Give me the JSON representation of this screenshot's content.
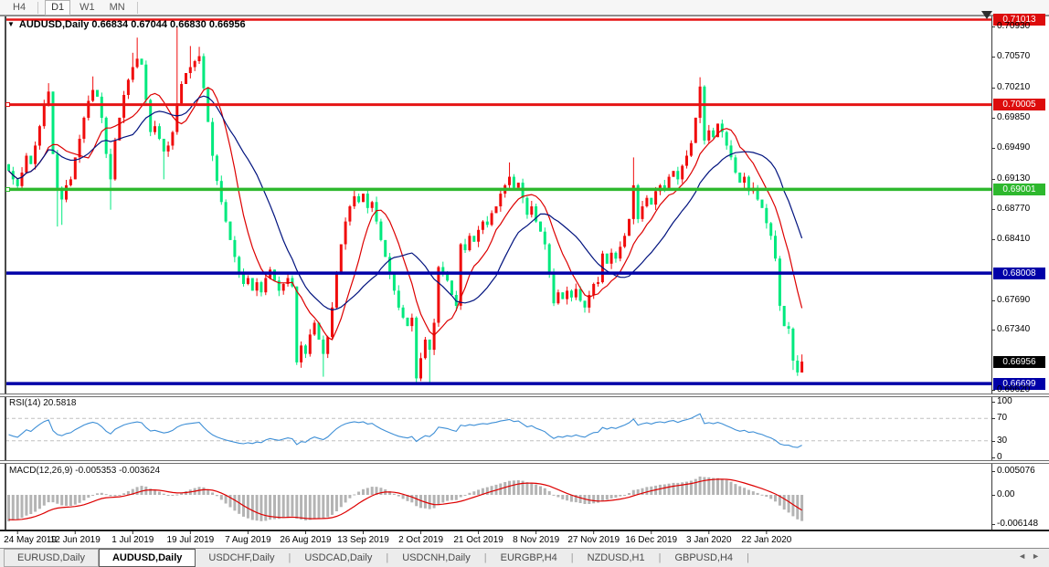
{
  "toolbar": {
    "timeframes": [
      {
        "label": "H4",
        "active": false
      },
      {
        "label": "D1",
        "active": true
      },
      {
        "label": "W1",
        "active": false
      },
      {
        "label": "MN",
        "active": false
      }
    ]
  },
  "header": {
    "symbol_title": "AUDUSD,Daily",
    "ohlc_text": "0.66834 0.67044 0.66830 0.66956",
    "dropdown_icon": "▼"
  },
  "indicators": {
    "rsi": {
      "name": "RSI(14)",
      "value": "20.5818",
      "line_color": "#3e8fd6",
      "level_line_color": "#c0c0c0",
      "levels": [
        70,
        30
      ],
      "axis_labels": [
        {
          "text": "100",
          "v": 100
        },
        {
          "text": "70",
          "v": 70
        },
        {
          "text": "30",
          "v": 30
        },
        {
          "text": "0",
          "v": 0
        }
      ]
    },
    "macd": {
      "name": "MACD(12,26,9)",
      "macd_value": "-0.005353",
      "signal_value": "-0.003624",
      "histogram_color": "#b4b4b4",
      "signal_color": "#dd0000",
      "axis_labels": [
        {
          "text": "0.005076",
          "v": 0.005076
        },
        {
          "text": "0.00",
          "v": 0
        },
        {
          "text": "-0.006148",
          "v": -0.006148
        }
      ]
    }
  },
  "chart_data": {
    "type": "candlestick",
    "symbol": "AUDUSD",
    "timeframe": "Daily",
    "up_color": "#f00c0c",
    "down_color": "#00e97e",
    "ma_fast": {
      "period": 9,
      "color": "#dd0000"
    },
    "ma_slow": {
      "period": 19,
      "color": "#00127e"
    },
    "price_range": {
      "top": 0.7104,
      "bottom": 0.6657
    },
    "price_axis_ticks": [
      0.7093,
      0.7057,
      0.7021,
      0.6985,
      0.6949,
      0.6913,
      0.6877,
      0.6841,
      0.6769,
      0.6734,
      0.6662
    ],
    "x_axis_dates": [
      "24 May 2019",
      "12 Jun 2019",
      "1 Jul 2019",
      "19 Jul 2019",
      "7 Aug 2019",
      "26 Aug 2019",
      "13 Sep 2019",
      "2 Oct 2019",
      "21 Oct 2019",
      "8 Nov 2019",
      "27 Nov 2019",
      "16 Dec 2019",
      "3 Jan 2020",
      "22 Jan 2020"
    ],
    "date_tick_bars": [
      2,
      15,
      28,
      41,
      54,
      67,
      80,
      93,
      106,
      119,
      132,
      145,
      158,
      171
    ],
    "first_open": 0.693,
    "closes": [
      0.6922,
      0.6912,
      0.6904,
      0.692,
      0.694,
      0.693,
      0.6952,
      0.6975,
      0.7,
      0.7016,
      0.6942,
      0.6902,
      0.6888,
      0.6905,
      0.6912,
      0.6938,
      0.696,
      0.6985,
      0.7005,
      0.7018,
      0.701,
      0.6985,
      0.6942,
      0.6912,
      0.6958,
      0.6985,
      0.7012,
      0.703,
      0.7045,
      0.7055,
      0.7048,
      0.7006,
      0.6968,
      0.6975,
      0.696,
      0.6945,
      0.6952,
      0.6968,
      0.7002,
      0.7025,
      0.7038,
      0.7045,
      0.7052,
      0.7058,
      0.702,
      0.698,
      0.694,
      0.691,
      0.6885,
      0.6862,
      0.684,
      0.682,
      0.68,
      0.6788,
      0.6795,
      0.678,
      0.679,
      0.6778,
      0.6795,
      0.6805,
      0.6792,
      0.678,
      0.6788,
      0.6795,
      0.6785,
      0.6695,
      0.6715,
      0.6705,
      0.6728,
      0.6742,
      0.6722,
      0.6705,
      0.6725,
      0.676,
      0.68,
      0.6835,
      0.6862,
      0.688,
      0.6892,
      0.6885,
      0.6895,
      0.6878,
      0.6885,
      0.6862,
      0.684,
      0.682,
      0.68,
      0.678,
      0.676,
      0.6748,
      0.6738,
      0.6748,
      0.6676,
      0.67,
      0.6722,
      0.671,
      0.6742,
      0.6808,
      0.68,
      0.6792,
      0.6775,
      0.6762,
      0.6835,
      0.6828,
      0.6845,
      0.6838,
      0.6852,
      0.6862,
      0.6858,
      0.6872,
      0.688,
      0.6895,
      0.6905,
      0.6915,
      0.6902,
      0.6908,
      0.689,
      0.687,
      0.688,
      0.6862,
      0.685,
      0.6835,
      0.68,
      0.6765,
      0.6778,
      0.677,
      0.678,
      0.6772,
      0.6782,
      0.6768,
      0.676,
      0.6775,
      0.6788,
      0.679,
      0.6824,
      0.6812,
      0.6825,
      0.6818,
      0.6832,
      0.6845,
      0.6865,
      0.6905,
      0.6865,
      0.688,
      0.689,
      0.6882,
      0.6898,
      0.6905,
      0.69,
      0.6915,
      0.6922,
      0.6912,
      0.6928,
      0.694,
      0.6955,
      0.6985,
      0.7022,
      0.6958,
      0.697,
      0.6962,
      0.6978,
      0.6968,
      0.6952,
      0.6938,
      0.692,
      0.6908,
      0.6915,
      0.6898,
      0.6902,
      0.6888,
      0.6878,
      0.686,
      0.6845,
      0.6818,
      0.6762,
      0.6738,
      0.6735,
      0.6697,
      0.6683,
      0.6696
    ],
    "wick_overrides": {
      "9": {
        "h": 0.7026
      },
      "11": {
        "l": 0.6856
      },
      "12": {
        "l": 0.6858
      },
      "19": {
        "h": 0.7034
      },
      "23": {
        "l": 0.6876
      },
      "28": {
        "h": 0.7062
      },
      "29": {
        "h": 0.708
      },
      "35": {
        "l": 0.6912
      },
      "38": {
        "h": 0.7092
      },
      "41": {
        "h": 0.707
      },
      "43": {
        "h": 0.7069
      },
      "65": {
        "l": 0.6692
      },
      "71": {
        "l": 0.6678
      },
      "78": {
        "h": 0.6901
      },
      "92": {
        "l": 0.667
      },
      "95": {
        "l": 0.6671
      },
      "113": {
        "h": 0.6932
      },
      "130": {
        "l": 0.6754
      },
      "141": {
        "h": 0.6938
      },
      "156": {
        "h": 0.7033
      },
      "174": {
        "l": 0.6756
      },
      "177": {
        "l": 0.6686
      },
      "178": {
        "l": 0.6679
      },
      "179": {
        "h": 0.67044,
        "l": 0.6683
      }
    },
    "horizontal_lines": [
      {
        "price": 0.71013,
        "label": "0.71013",
        "color": "#e51414",
        "thickness": 2.5,
        "badge": "#dd0c0c",
        "handle": false
      },
      {
        "price": 0.70005,
        "label": "0.70005",
        "color": "#e51414",
        "thickness": 3,
        "badge": "#dd0c0c",
        "handle": true
      },
      {
        "price": 0.69001,
        "label": "0.69001",
        "color": "#2eb82e",
        "thickness": 3.5,
        "badge": "#2eb82e",
        "handle": true
      },
      {
        "price": 0.68008,
        "label": "0.68008",
        "color": "#0000a8",
        "thickness": 3.5,
        "badge": "#0000a8",
        "handle": false
      },
      {
        "price": 0.66699,
        "label": "0.66699",
        "color": "#0000a8",
        "thickness": 3.5,
        "badge": "#0000a8",
        "handle": false
      }
    ],
    "current_price": {
      "price": 0.66956,
      "label": "0.66956",
      "badge": "#000000"
    }
  },
  "tabs": {
    "items": [
      {
        "label": "EURUSD,Daily",
        "active": false
      },
      {
        "label": "AUDUSD,Daily",
        "active": true
      },
      {
        "label": "USDCHF,Daily",
        "active": false
      },
      {
        "label": "USDCAD,Daily",
        "active": false
      },
      {
        "label": "USDCNH,Daily",
        "active": false
      },
      {
        "label": "EURGBP,H4",
        "active": false
      },
      {
        "label": "NZDUSD,H1",
        "active": false
      },
      {
        "label": "GBPUSD,H4",
        "active": false
      }
    ],
    "scroll_left_icon": "◄",
    "scroll_right_icon": "►"
  }
}
